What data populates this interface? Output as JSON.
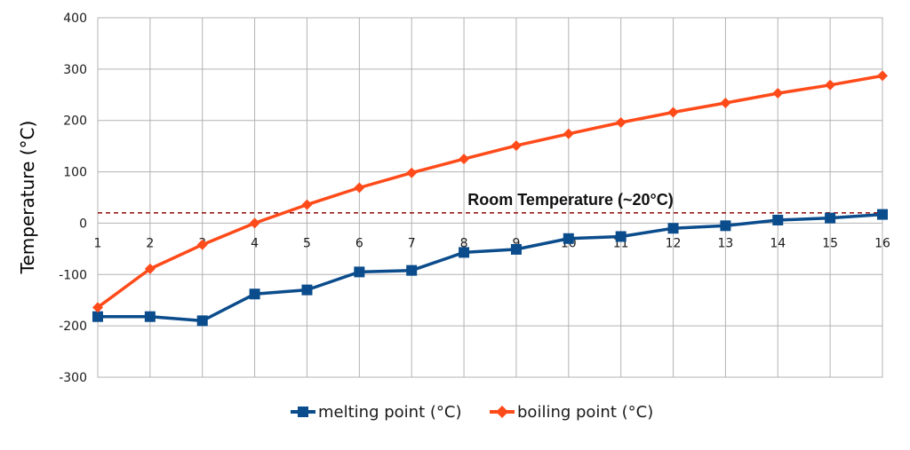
{
  "chart_data": {
    "type": "line",
    "title": "",
    "xlabel": "",
    "ylabel": "Temperature (°C)",
    "x": [
      1,
      2,
      3,
      4,
      5,
      6,
      7,
      8,
      9,
      10,
      11,
      12,
      13,
      14,
      15,
      16
    ],
    "xlim": [
      1,
      16
    ],
    "ylim": [
      -300,
      400
    ],
    "yticks": [
      -300,
      -200,
      -100,
      0,
      100,
      200,
      300,
      400
    ],
    "grid": true,
    "legend_position": "bottom",
    "series": [
      {
        "name": "melting point (°C)",
        "color": "#0b4c8c",
        "marker": "square",
        "values": [
          -182,
          -182,
          -190,
          -138,
          -130,
          -95,
          -92,
          -57,
          -51,
          -30,
          -26,
          -10,
          -5,
          6,
          10,
          17
        ]
      },
      {
        "name": "boiling point (°C)",
        "color": "#ff4b1a",
        "marker": "diamond",
        "values": [
          -164,
          -89,
          -42,
          0,
          36,
          69,
          98,
          125,
          151,
          174,
          196,
          216,
          234,
          253,
          269,
          287
        ]
      }
    ],
    "annotations": [
      {
        "text": "Room Temperature (~20°C)",
        "y": 20,
        "color": "#9c1c1c",
        "style": "dashed"
      }
    ]
  }
}
